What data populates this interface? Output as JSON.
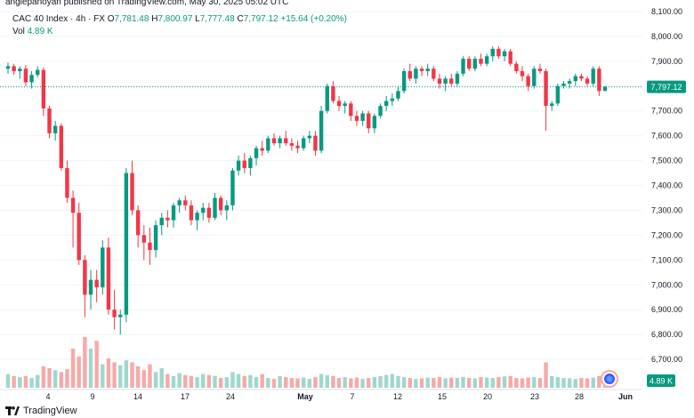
{
  "header": {
    "topline": "anglepanoyan published on TradingView.com, May 30, 2025 05:02 UTC"
  },
  "legend": {
    "symbol": "CAC 40 Index · 4h · FX",
    "open_label": "O",
    "open": "7,781.48",
    "high_label": "H",
    "high": "7,800.97",
    "low_label": "L",
    "low": "7,777.48",
    "close_label": "C",
    "close": "7,797.12",
    "change": "+15.64 (+0.20%)",
    "vol_label": "Vol",
    "vol": "4.89 K"
  },
  "footer": {
    "brand": "TradingView"
  },
  "colors": {
    "up": "#089981",
    "down": "#f23645",
    "vol_up": "#9fd7ce",
    "vol_down": "#f7a9a7",
    "grid": "#f0f3fa",
    "price_line": "#089981"
  },
  "chart_data": {
    "type": "candlestick",
    "price_axis": {
      "ticks": [
        "8,100.00",
        "8,000.00",
        "7,900.00",
        "7,800.00",
        "7,700.00",
        "7,600.00",
        "7,500.00",
        "7,400.00",
        "7,300.00",
        "7,200.00",
        "7,100.00",
        "7,000.00",
        "6,900.00",
        "6,800.00",
        "6,700.00"
      ],
      "ylim": [
        6600,
        8125
      ]
    },
    "time_axis": {
      "ticks": [
        {
          "label": "4",
          "bold": false
        },
        {
          "label": "9",
          "bold": false
        },
        {
          "label": "14",
          "bold": false
        },
        {
          "label": "17",
          "bold": false
        },
        {
          "label": "24",
          "bold": false
        },
        {
          "label": "May",
          "bold": true
        },
        {
          "label": "7",
          "bold": false
        },
        {
          "label": "12",
          "bold": false
        },
        {
          "label": "15",
          "bold": false
        },
        {
          "label": "20",
          "bold": false
        },
        {
          "label": "23",
          "bold": false
        },
        {
          "label": "28",
          "bold": false
        },
        {
          "label": "Jun",
          "bold": true
        }
      ]
    },
    "last_price_label": "7,797.12",
    "last_volume_label": "4.89 K",
    "ohlc": [
      [
        7870,
        7895,
        7850,
        7880
      ],
      [
        7880,
        7890,
        7845,
        7860
      ],
      [
        7860,
        7880,
        7830,
        7870
      ],
      [
        7870,
        7885,
        7800,
        7815
      ],
      [
        7815,
        7860,
        7790,
        7845
      ],
      [
        7845,
        7880,
        7835,
        7865
      ],
      [
        7865,
        7875,
        7680,
        7710
      ],
      [
        7710,
        7720,
        7590,
        7610
      ],
      [
        7610,
        7660,
        7580,
        7640
      ],
      [
        7640,
        7650,
        7460,
        7470
      ],
      [
        7470,
        7500,
        7330,
        7350
      ],
      [
        7350,
        7380,
        7150,
        7290
      ],
      [
        7290,
        7330,
        7080,
        7100
      ],
      [
        7100,
        7120,
        6870,
        6960
      ],
      [
        6960,
        7060,
        6900,
        7020
      ],
      [
        7020,
        7060,
        6930,
        6990
      ],
      [
        6990,
        7180,
        6960,
        7150
      ],
      [
        7150,
        7190,
        6880,
        6900
      ],
      [
        6900,
        6980,
        6820,
        6870
      ],
      [
        6870,
        6900,
        6800,
        6880
      ],
      [
        6880,
        7470,
        6850,
        7450
      ],
      [
        7450,
        7500,
        7280,
        7300
      ],
      [
        7300,
        7320,
        7150,
        7200
      ],
      [
        7200,
        7240,
        7100,
        7170
      ],
      [
        7170,
        7230,
        7080,
        7140
      ],
      [
        7140,
        7260,
        7110,
        7240
      ],
      [
        7240,
        7290,
        7200,
        7270
      ],
      [
        7270,
        7300,
        7230,
        7260
      ],
      [
        7260,
        7330,
        7230,
        7320
      ],
      [
        7320,
        7350,
        7290,
        7340
      ],
      [
        7340,
        7360,
        7300,
        7320
      ],
      [
        7320,
        7340,
        7240,
        7260
      ],
      [
        7260,
        7300,
        7220,
        7290
      ],
      [
        7290,
        7330,
        7260,
        7310
      ],
      [
        7310,
        7330,
        7250,
        7270
      ],
      [
        7270,
        7370,
        7260,
        7350
      ],
      [
        7350,
        7360,
        7280,
        7300
      ],
      [
        7300,
        7340,
        7260,
        7320
      ],
      [
        7320,
        7470,
        7300,
        7460
      ],
      [
        7460,
        7520,
        7440,
        7500
      ],
      [
        7500,
        7530,
        7450,
        7470
      ],
      [
        7470,
        7520,
        7440,
        7510
      ],
      [
        7510,
        7560,
        7480,
        7550
      ],
      [
        7550,
        7580,
        7520,
        7540
      ],
      [
        7540,
        7600,
        7530,
        7590
      ],
      [
        7590,
        7610,
        7560,
        7570
      ],
      [
        7570,
        7600,
        7550,
        7590
      ],
      [
        7590,
        7620,
        7560,
        7570
      ],
      [
        7570,
        7590,
        7540,
        7560
      ],
      [
        7560,
        7580,
        7530,
        7550
      ],
      [
        7550,
        7600,
        7540,
        7590
      ],
      [
        7590,
        7620,
        7570,
        7600
      ],
      [
        7600,
        7620,
        7520,
        7540
      ],
      [
        7540,
        7720,
        7530,
        7700
      ],
      [
        7700,
        7810,
        7690,
        7800
      ],
      [
        7800,
        7820,
        7730,
        7740
      ],
      [
        7740,
        7760,
        7700,
        7720
      ],
      [
        7720,
        7740,
        7690,
        7730
      ],
      [
        7730,
        7740,
        7660,
        7680
      ],
      [
        7680,
        7700,
        7640,
        7660
      ],
      [
        7660,
        7700,
        7640,
        7690
      ],
      [
        7690,
        7700,
        7610,
        7630
      ],
      [
        7630,
        7690,
        7610,
        7680
      ],
      [
        7680,
        7730,
        7670,
        7720
      ],
      [
        7720,
        7760,
        7700,
        7740
      ],
      [
        7740,
        7770,
        7720,
        7750
      ],
      [
        7750,
        7800,
        7740,
        7780
      ],
      [
        7780,
        7870,
        7770,
        7860
      ],
      [
        7860,
        7890,
        7820,
        7830
      ],
      [
        7830,
        7880,
        7810,
        7870
      ],
      [
        7870,
        7880,
        7840,
        7860
      ],
      [
        7860,
        7890,
        7840,
        7870
      ],
      [
        7870,
        7880,
        7820,
        7830
      ],
      [
        7830,
        7850,
        7790,
        7810
      ],
      [
        7810,
        7840,
        7780,
        7830
      ],
      [
        7830,
        7850,
        7800,
        7810
      ],
      [
        7810,
        7860,
        7800,
        7850
      ],
      [
        7850,
        7920,
        7840,
        7910
      ],
      [
        7910,
        7920,
        7860,
        7870
      ],
      [
        7870,
        7920,
        7860,
        7910
      ],
      [
        7910,
        7930,
        7880,
        7890
      ],
      [
        7890,
        7930,
        7880,
        7920
      ],
      [
        7920,
        7960,
        7900,
        7950
      ],
      [
        7950,
        7960,
        7910,
        7920
      ],
      [
        7920,
        7950,
        7900,
        7940
      ],
      [
        7940,
        7950,
        7880,
        7890
      ],
      [
        7890,
        7900,
        7850,
        7860
      ],
      [
        7860,
        7880,
        7820,
        7840
      ],
      [
        7840,
        7850,
        7780,
        7800
      ],
      [
        7800,
        7880,
        7790,
        7870
      ],
      [
        7870,
        7890,
        7850,
        7860
      ],
      [
        7860,
        7870,
        7620,
        7720
      ],
      [
        7720,
        7740,
        7700,
        7730
      ],
      [
        7730,
        7810,
        7720,
        7800
      ],
      [
        7800,
        7820,
        7790,
        7810
      ],
      [
        7810,
        7830,
        7790,
        7820
      ],
      [
        7820,
        7850,
        7800,
        7840
      ],
      [
        7840,
        7850,
        7820,
        7830
      ],
      [
        7830,
        7840,
        7800,
        7810
      ],
      [
        7810,
        7880,
        7800,
        7870
      ],
      [
        7870,
        7880,
        7760,
        7780
      ],
      [
        7781.48,
        7800.97,
        7777.48,
        7797.12
      ]
    ],
    "volume": [
      70,
      60,
      55,
      60,
      50,
      65,
      110,
      100,
      90,
      80,
      95,
      200,
      160,
      260,
      200,
      240,
      120,
      150,
      130,
      115,
      140,
      130,
      110,
      90,
      120,
      80,
      100,
      70,
      60,
      75,
      65,
      60,
      55,
      70,
      65,
      60,
      50,
      55,
      80,
      70,
      60,
      65,
      55,
      70,
      50,
      45,
      60,
      55,
      50,
      48,
      52,
      45,
      55,
      70,
      65,
      60,
      50,
      55,
      48,
      52,
      45,
      50,
      55,
      60,
      65,
      70,
      60,
      55,
      50,
      45,
      48,
      52,
      50,
      55,
      48,
      52,
      50,
      55,
      50,
      48,
      55,
      52,
      50,
      55,
      58,
      60,
      50,
      48,
      52,
      55,
      50,
      130,
      60,
      55,
      50,
      48,
      45,
      50,
      48,
      52,
      60,
      45
    ]
  }
}
